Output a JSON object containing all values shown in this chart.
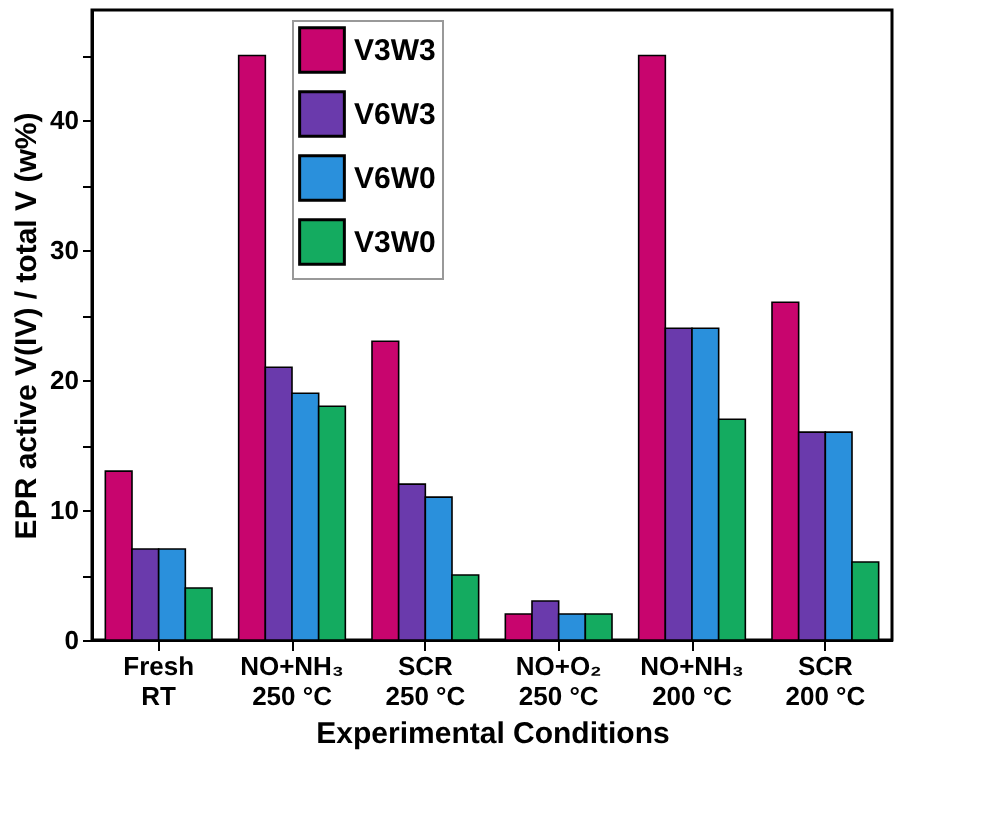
{
  "chart_data": {
    "type": "bar",
    "xlabel": "Experimental Conditions",
    "ylabel": "EPR active V(IV) / total V (w%)",
    "categories": [
      "Fresh\nRT",
      "NO+NH₃\n250 °C",
      "SCR\n250 °C",
      "NO+O₂\n250 °C",
      "NO+NH₃\n200 °C",
      "SCR\n200 °C"
    ],
    "series": [
      {
        "name": "V3W3",
        "color": "#c8056e",
        "values": [
          13,
          45,
          23,
          2,
          45,
          26
        ]
      },
      {
        "name": "V6W3",
        "color": "#6a3aac",
        "values": [
          7,
          21,
          12,
          3,
          24,
          16
        ]
      },
      {
        "name": "V6W0",
        "color": "#2a90dc",
        "values": [
          7,
          19,
          11,
          2,
          24,
          16
        ]
      },
      {
        "name": "V3W0",
        "color": "#14ab60",
        "values": [
          4,
          18,
          5,
          2,
          17,
          6
        ]
      }
    ],
    "ylim": [
      0,
      48.5
    ],
    "yticks": [
      0,
      {
        "value": 5,
        "label": null
      },
      10,
      {
        "value": 15,
        "label": null
      },
      20,
      {
        "value": 25,
        "label": null
      },
      30,
      {
        "value": 35,
        "label": null
      },
      40,
      {
        "value": 45,
        "label": null
      }
    ],
    "grid": false,
    "legend": "top"
  }
}
